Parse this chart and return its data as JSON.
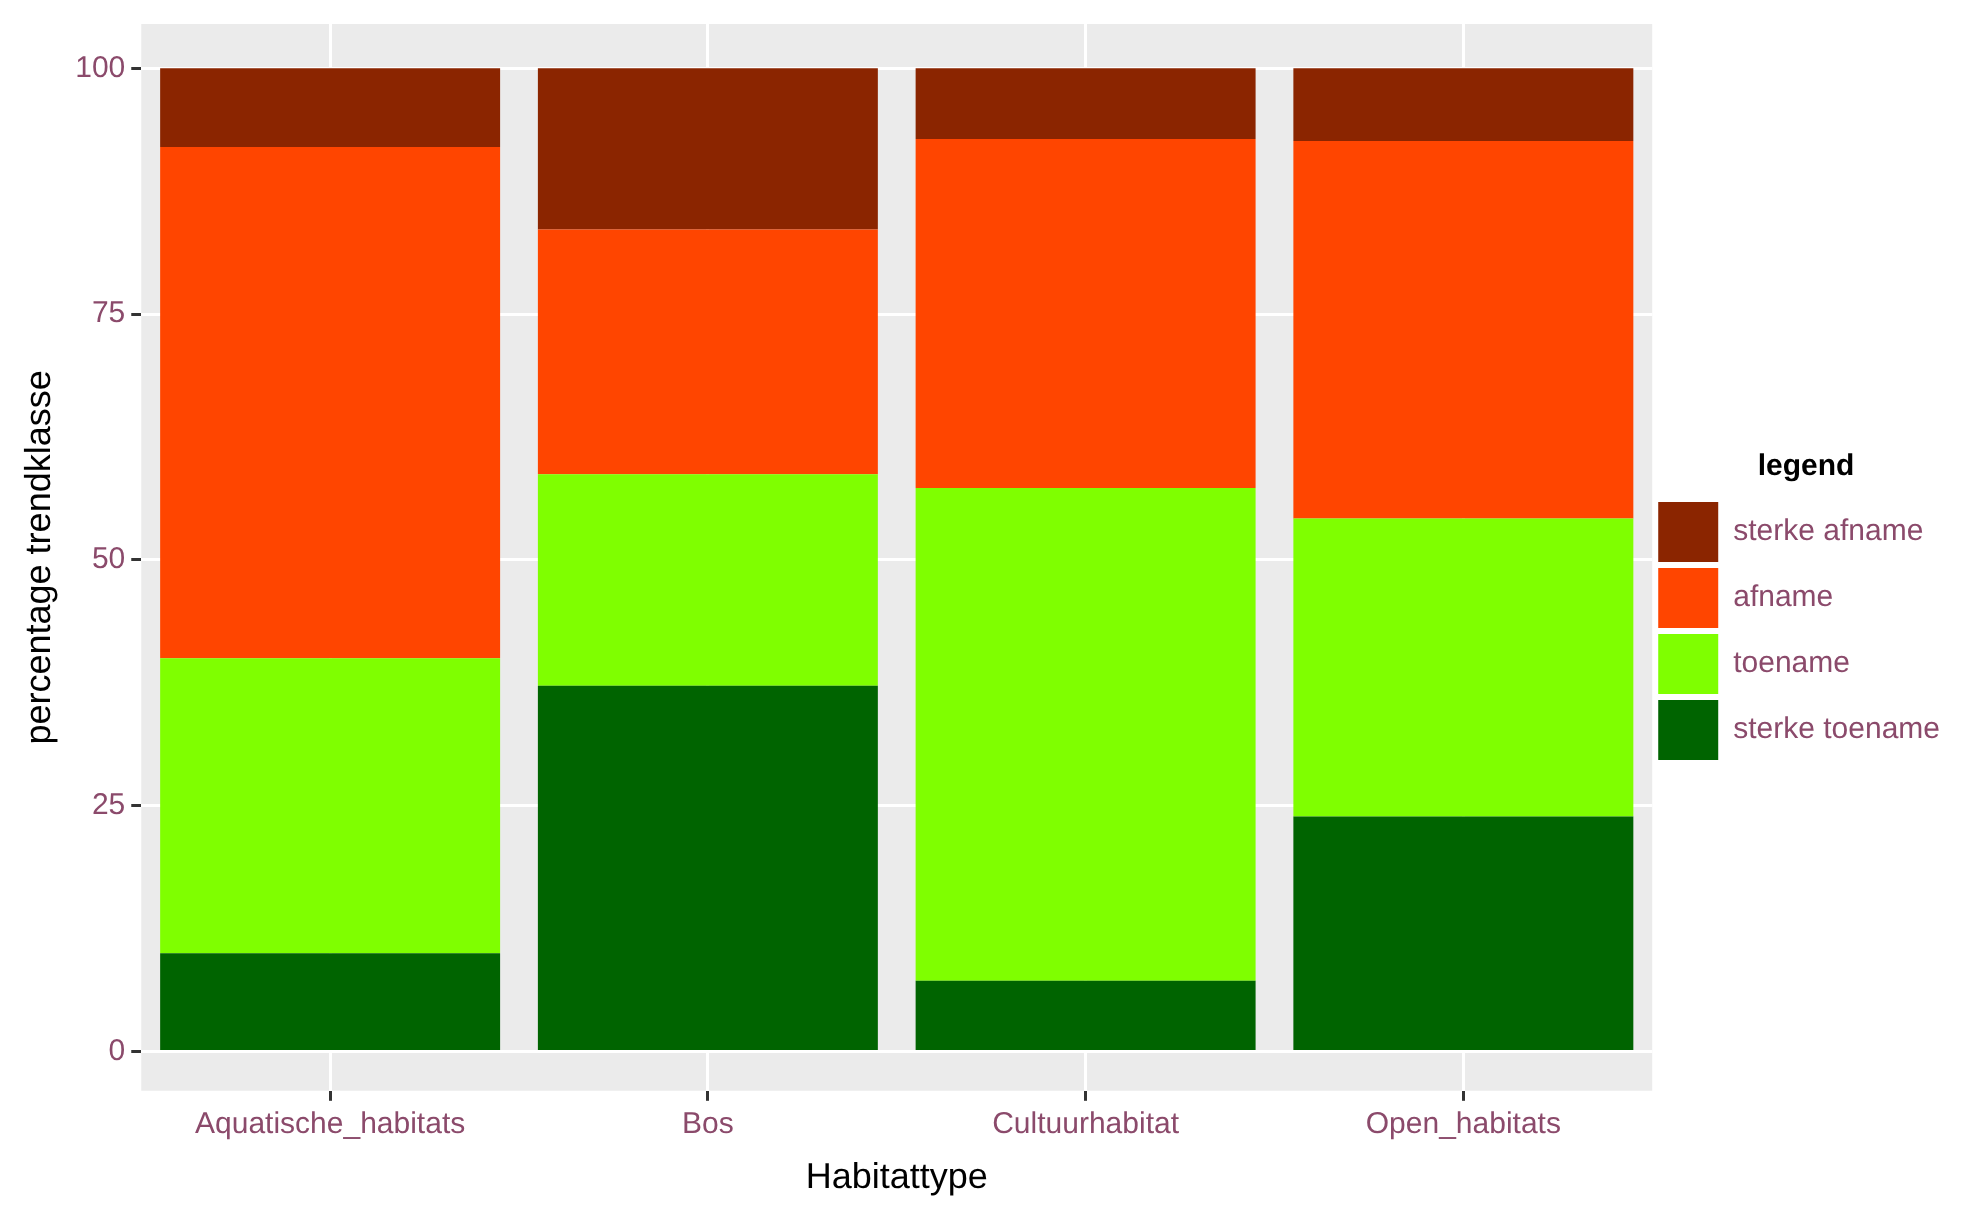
{
  "chart_data": {
    "type": "bar",
    "stacked": true,
    "xlabel": "Habitattype",
    "ylabel": "percentage trendklasse",
    "legend_title": "legend",
    "categories": [
      "Aquatische_habitats",
      "Bos",
      "Cultuurhabitat",
      "Open_habitats"
    ],
    "series": [
      {
        "name": "sterke toename",
        "color": "#006400",
        "values": [
          10,
          37.2,
          7.2,
          23.9
        ]
      },
      {
        "name": "toename",
        "color": "#7fff00",
        "values": [
          30,
          21.5,
          50.1,
          30.3
        ]
      },
      {
        "name": "afname",
        "color": "#ff4500",
        "values": [
          52,
          24.9,
          35.5,
          38.4
        ]
      },
      {
        "name": "sterke afname",
        "color": "#8b2500",
        "values": [
          8,
          16.4,
          7.2,
          7.4
        ]
      }
    ],
    "ylim": [
      -4,
      104.5
    ],
    "yticks": [
      0,
      25,
      50,
      75,
      100
    ],
    "grid": true,
    "legend": "right"
  }
}
